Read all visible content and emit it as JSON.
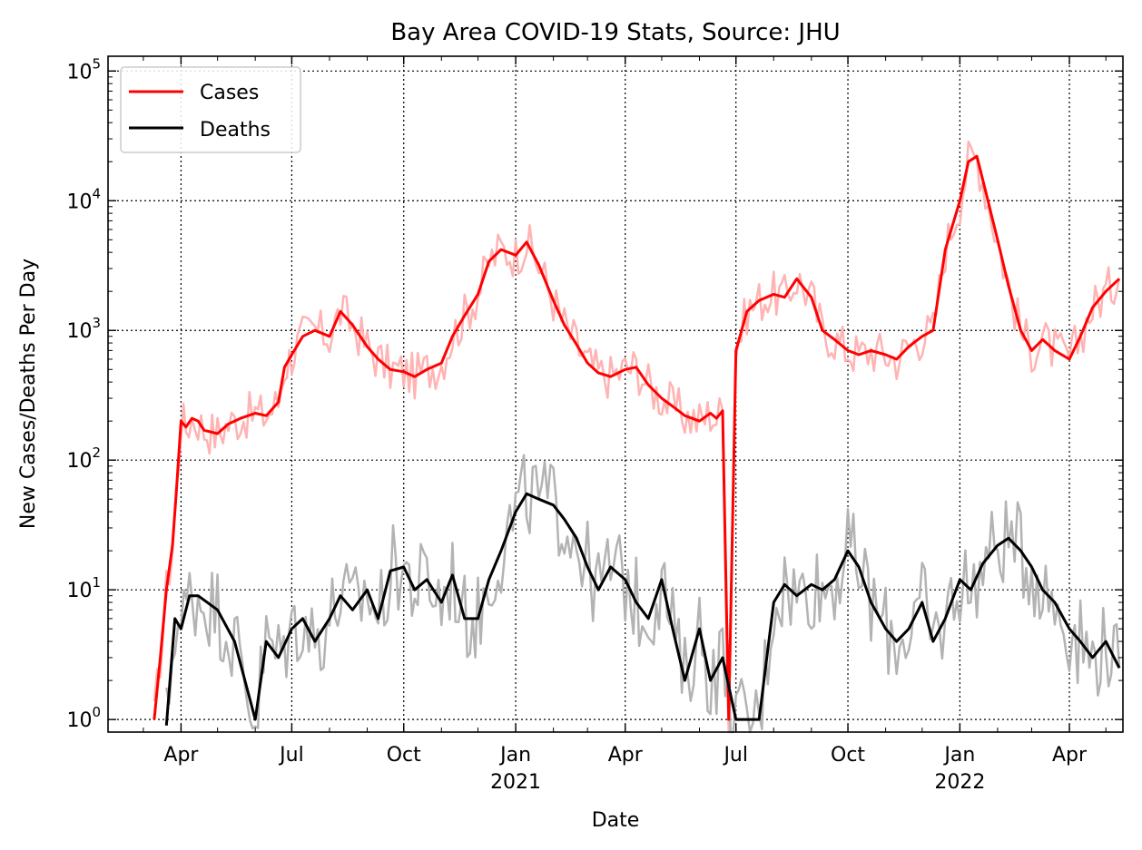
{
  "chart_data": {
    "type": "line",
    "title": "Bay Area COVID-19 Stats, Source: JHU",
    "xlabel": "Date",
    "ylabel": "New Cases/Deaths Per Day",
    "yscale": "log",
    "ylim": [
      0.8,
      130000
    ],
    "xlim": [
      "2020-02-01",
      "2022-05-15"
    ],
    "grid": true,
    "legend_placement": "top-left",
    "x_ticks": [
      {
        "date": "2020-04-01",
        "label": "Apr",
        "year": ""
      },
      {
        "date": "2020-07-01",
        "label": "Jul",
        "year": ""
      },
      {
        "date": "2020-10-01",
        "label": "Oct",
        "year": ""
      },
      {
        "date": "2021-01-01",
        "label": "Jan",
        "year": "2021"
      },
      {
        "date": "2021-04-01",
        "label": "Apr",
        "year": ""
      },
      {
        "date": "2021-07-01",
        "label": "Jul",
        "year": ""
      },
      {
        "date": "2021-10-01",
        "label": "Oct",
        "year": ""
      },
      {
        "date": "2022-01-01",
        "label": "Jan",
        "year": "2022"
      },
      {
        "date": "2022-04-01",
        "label": "Apr",
        "year": ""
      }
    ],
    "y_ticks": [
      {
        "value": 1,
        "base": "10",
        "exp": "0"
      },
      {
        "value": 10,
        "base": "10",
        "exp": "1"
      },
      {
        "value": 100,
        "base": "10",
        "exp": "2"
      },
      {
        "value": 1000,
        "base": "10",
        "exp": "3"
      },
      {
        "value": 10000,
        "base": "10",
        "exp": "4"
      },
      {
        "value": 100000,
        "base": "10",
        "exp": "5"
      }
    ],
    "series": [
      {
        "name": "Cases",
        "color": "#ff0000",
        "raw_color": "#ffb3b3",
        "x": [
          "2020-03-10",
          "2020-03-15",
          "2020-03-20",
          "2020-03-25",
          "2020-03-28",
          "2020-04-01",
          "2020-04-05",
          "2020-04-10",
          "2020-04-15",
          "2020-04-20",
          "2020-05-01",
          "2020-05-10",
          "2020-05-20",
          "2020-06-01",
          "2020-06-10",
          "2020-06-20",
          "2020-06-25",
          "2020-07-01",
          "2020-07-10",
          "2020-07-20",
          "2020-08-01",
          "2020-08-10",
          "2020-08-20",
          "2020-09-01",
          "2020-09-10",
          "2020-09-20",
          "2020-10-01",
          "2020-10-10",
          "2020-10-20",
          "2020-11-01",
          "2020-11-10",
          "2020-11-20",
          "2020-12-01",
          "2020-12-10",
          "2020-12-20",
          "2021-01-01",
          "2021-01-10",
          "2021-01-20",
          "2021-02-01",
          "2021-02-10",
          "2021-02-20",
          "2021-03-01",
          "2021-03-10",
          "2021-03-20",
          "2021-04-01",
          "2021-04-10",
          "2021-04-20",
          "2021-05-01",
          "2021-05-10",
          "2021-05-20",
          "2021-06-01",
          "2021-06-10",
          "2021-06-15",
          "2021-06-20",
          "2021-06-25",
          "2021-07-01",
          "2021-07-10",
          "2021-07-20",
          "2021-08-01",
          "2021-08-10",
          "2021-08-20",
          "2021-09-01",
          "2021-09-10",
          "2021-09-20",
          "2021-10-01",
          "2021-10-10",
          "2021-10-20",
          "2021-11-01",
          "2021-11-10",
          "2021-11-20",
          "2021-12-01",
          "2021-12-10",
          "2021-12-20",
          "2022-01-01",
          "2022-01-08",
          "2022-01-15",
          "2022-01-22",
          "2022-02-01",
          "2022-02-10",
          "2022-02-20",
          "2022-03-01",
          "2022-03-10",
          "2022-03-20",
          "2022-04-01",
          "2022-04-10",
          "2022-04-20",
          "2022-05-01",
          "2022-05-12"
        ],
        "values": [
          1,
          3,
          10,
          22,
          55,
          200,
          180,
          210,
          200,
          170,
          160,
          190,
          210,
          230,
          220,
          280,
          520,
          650,
          900,
          1000,
          900,
          1400,
          1100,
          750,
          600,
          500,
          480,
          440,
          500,
          560,
          900,
          1300,
          1900,
          3400,
          4200,
          3800,
          4800,
          3200,
          1700,
          1100,
          780,
          560,
          470,
          440,
          500,
          520,
          380,
          300,
          260,
          220,
          200,
          230,
          210,
          240,
          1,
          700,
          1400,
          1700,
          1900,
          1800,
          2500,
          1800,
          1000,
          850,
          700,
          650,
          700,
          650,
          600,
          750,
          900,
          1000,
          4200,
          10000,
          20000,
          22000,
          12000,
          5000,
          2200,
          1000,
          700,
          850,
          700,
          600,
          900,
          1500,
          2000,
          2500
        ]
      },
      {
        "name": "Deaths",
        "color": "#000000",
        "raw_color": "#b3b3b3",
        "x": [
          "2020-03-20",
          "2020-03-27",
          "2020-04-01",
          "2020-04-08",
          "2020-04-15",
          "2020-05-01",
          "2020-05-15",
          "2020-06-01",
          "2020-06-10",
          "2020-06-20",
          "2020-07-01",
          "2020-07-10",
          "2020-07-20",
          "2020-08-01",
          "2020-08-10",
          "2020-08-20",
          "2020-09-01",
          "2020-09-10",
          "2020-09-20",
          "2020-10-01",
          "2020-10-10",
          "2020-10-20",
          "2020-11-01",
          "2020-11-10",
          "2020-11-20",
          "2020-12-01",
          "2020-12-10",
          "2020-12-20",
          "2021-01-01",
          "2021-01-10",
          "2021-01-20",
          "2021-02-01",
          "2021-02-10",
          "2021-02-20",
          "2021-03-01",
          "2021-03-10",
          "2021-03-20",
          "2021-04-01",
          "2021-04-10",
          "2021-04-20",
          "2021-05-01",
          "2021-05-10",
          "2021-05-20",
          "2021-06-01",
          "2021-06-10",
          "2021-06-20",
          "2021-07-01",
          "2021-07-10",
          "2021-07-20",
          "2021-08-01",
          "2021-08-10",
          "2021-08-20",
          "2021-09-01",
          "2021-09-10",
          "2021-09-20",
          "2021-10-01",
          "2021-10-10",
          "2021-10-20",
          "2021-11-01",
          "2021-11-10",
          "2021-11-20",
          "2021-12-01",
          "2021-12-10",
          "2021-12-20",
          "2022-01-01",
          "2022-01-10",
          "2022-01-20",
          "2022-02-01",
          "2022-02-10",
          "2022-02-20",
          "2022-03-01",
          "2022-03-10",
          "2022-03-20",
          "2022-04-01",
          "2022-04-10",
          "2022-04-20",
          "2022-05-01",
          "2022-05-12"
        ],
        "values": [
          0.9,
          6,
          5,
          9,
          9,
          7,
          4,
          1,
          4,
          3,
          5,
          6,
          4,
          6,
          9,
          7,
          10,
          6,
          14,
          15,
          10,
          12,
          8,
          13,
          6,
          6,
          12,
          20,
          40,
          55,
          50,
          45,
          35,
          25,
          15,
          10,
          15,
          12,
          8,
          6,
          12,
          5,
          2,
          5,
          2,
          3,
          1,
          1,
          1,
          8,
          11,
          9,
          11,
          10,
          12,
          20,
          15,
          8,
          5,
          4,
          5,
          8,
          4,
          6,
          12,
          10,
          16,
          22,
          25,
          20,
          15,
          10,
          8,
          5,
          4,
          3,
          4,
          2.5
        ]
      }
    ],
    "legend": [
      {
        "label": "Cases",
        "color": "#ff0000"
      },
      {
        "label": "Deaths",
        "color": "#000000"
      }
    ]
  }
}
